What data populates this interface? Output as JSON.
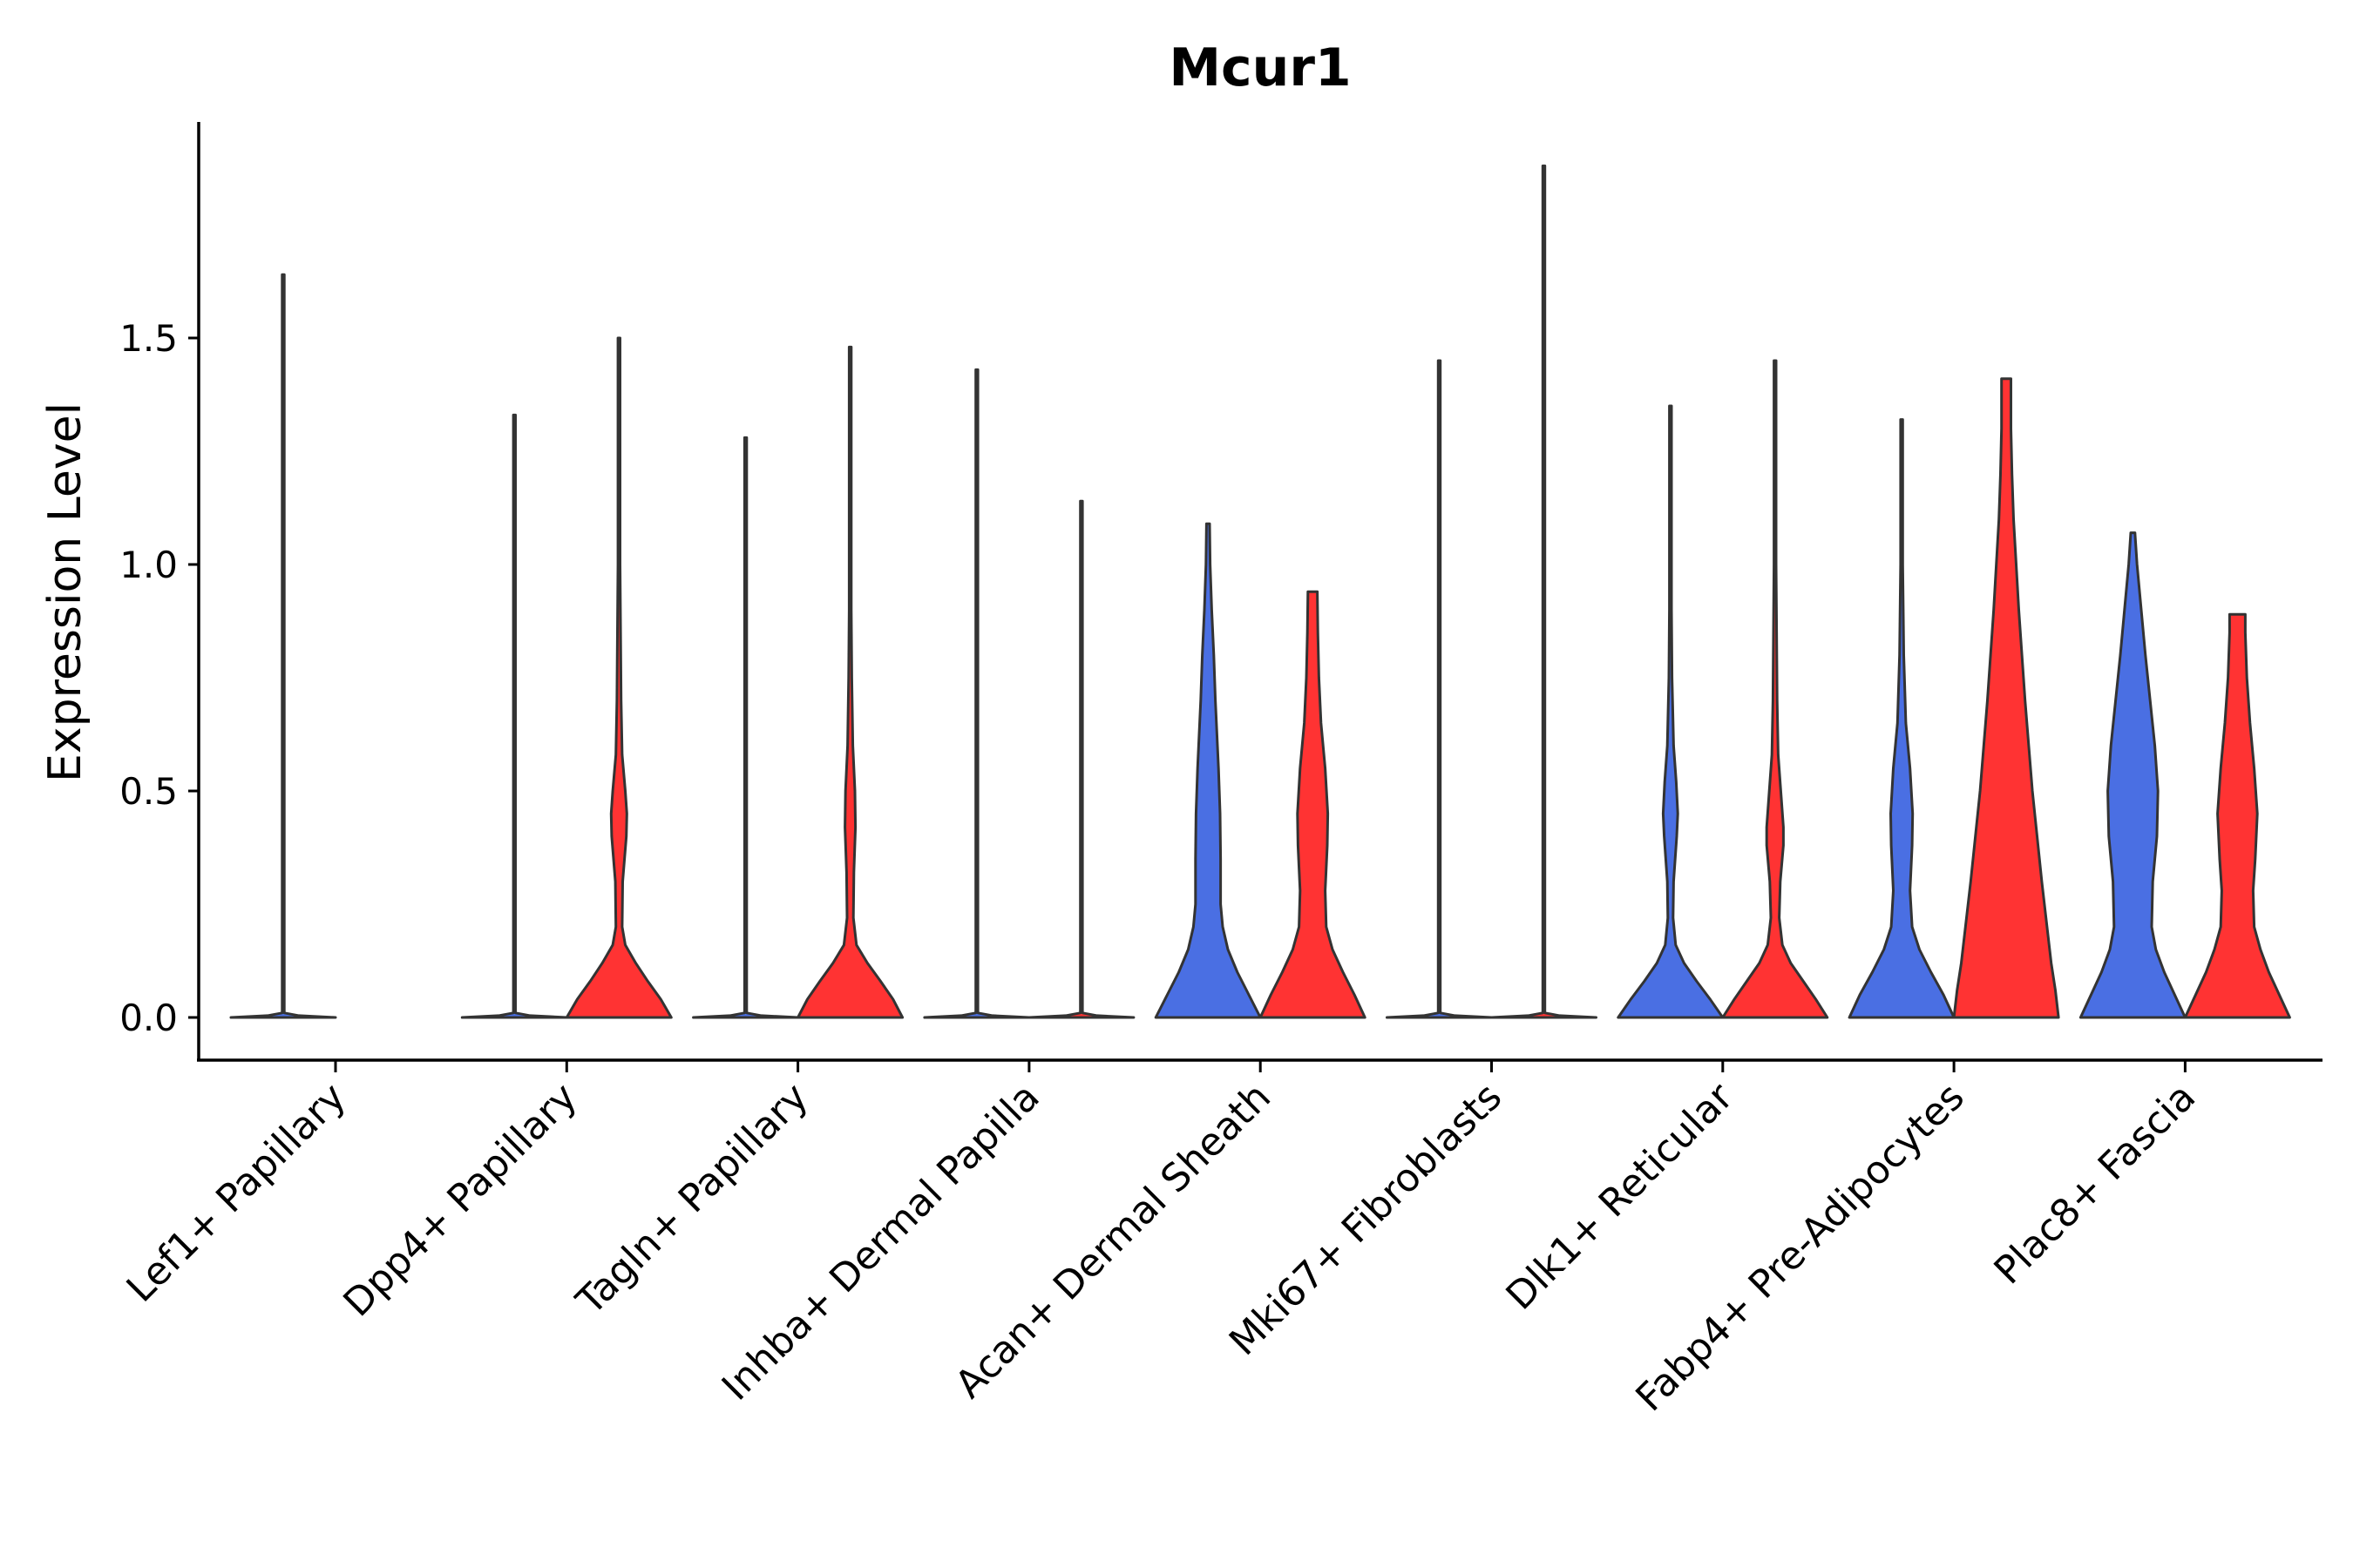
{
  "chart_data": {
    "type": "violin",
    "title": "Mcur1",
    "xlabel": "",
    "ylabel": "Expression Level",
    "ylim": [
      -0.1,
      1.97
    ],
    "yticks": [
      0.0,
      0.5,
      1.0,
      1.5
    ],
    "ytick_labels": [
      "0.0",
      "0.5",
      "1.0",
      "1.5"
    ],
    "colors": {
      "group_a": "#4A6FE3",
      "group_b": "#FF3333",
      "outline": "#333333"
    },
    "categories": [
      "Lef1+ Papillary",
      "Dpp4+ Papillary",
      "Tagln+ Papillary",
      "Inhba+ Dermal Papilla",
      "Acan+ Dermal Sheath",
      "Mki67+ Fibroblasts",
      "Dlk1+ Reticular",
      "Fabp4+ Pre-Adipocytes",
      "Plac8+ Fascia"
    ],
    "violins": [
      {
        "category": 0,
        "group": "a",
        "max": 1.64,
        "profile": [
          [
            0,
            1.0
          ],
          [
            0.004,
            0.3
          ],
          [
            0.01,
            0.02
          ],
          [
            1.64,
            0.005
          ]
        ]
      },
      {
        "category": 1,
        "group": "a",
        "max": 1.33,
        "profile": [
          [
            0,
            1.0
          ],
          [
            0.004,
            0.3
          ],
          [
            0.01,
            0.02
          ],
          [
            1.33,
            0.005
          ]
        ]
      },
      {
        "category": 1,
        "group": "b",
        "max": 1.5,
        "profile": [
          [
            0,
            1.0
          ],
          [
            0.04,
            0.8
          ],
          [
            0.08,
            0.55
          ],
          [
            0.12,
            0.32
          ],
          [
            0.16,
            0.12
          ],
          [
            0.2,
            0.06
          ],
          [
            0.3,
            0.07
          ],
          [
            0.4,
            0.14
          ],
          [
            0.45,
            0.15
          ],
          [
            0.5,
            0.12
          ],
          [
            0.58,
            0.06
          ],
          [
            0.7,
            0.04
          ],
          [
            0.85,
            0.03
          ],
          [
            1.0,
            0.01
          ],
          [
            1.5,
            0.005
          ]
        ]
      },
      {
        "category": 2,
        "group": "a",
        "max": 1.28,
        "profile": [
          [
            0,
            1.0
          ],
          [
            0.004,
            0.3
          ],
          [
            0.01,
            0.02
          ],
          [
            1.28,
            0.005
          ]
        ]
      },
      {
        "category": 2,
        "group": "b",
        "max": 1.48,
        "profile": [
          [
            0,
            1.0
          ],
          [
            0.04,
            0.82
          ],
          [
            0.08,
            0.58
          ],
          [
            0.12,
            0.33
          ],
          [
            0.16,
            0.12
          ],
          [
            0.22,
            0.06
          ],
          [
            0.32,
            0.07
          ],
          [
            0.42,
            0.1
          ],
          [
            0.5,
            0.09
          ],
          [
            0.6,
            0.05
          ],
          [
            0.75,
            0.03
          ],
          [
            0.9,
            0.02
          ],
          [
            1.2,
            0.01
          ],
          [
            1.48,
            0.005
          ]
        ]
      },
      {
        "category": 3,
        "group": "a",
        "max": 1.43,
        "profile": [
          [
            0,
            1.0
          ],
          [
            0.004,
            0.3
          ],
          [
            0.01,
            0.02
          ],
          [
            1.43,
            0.005
          ]
        ]
      },
      {
        "category": 3,
        "group": "b",
        "max": 1.14,
        "profile": [
          [
            0,
            1.0
          ],
          [
            0.004,
            0.3
          ],
          [
            0.01,
            0.02
          ],
          [
            1.14,
            0.005
          ]
        ]
      },
      {
        "category": 4,
        "group": "a",
        "max": 1.09,
        "profile": [
          [
            0,
            1.0
          ],
          [
            0.05,
            0.78
          ],
          [
            0.1,
            0.56
          ],
          [
            0.15,
            0.38
          ],
          [
            0.2,
            0.28
          ],
          [
            0.25,
            0.24
          ],
          [
            0.35,
            0.24
          ],
          [
            0.45,
            0.23
          ],
          [
            0.55,
            0.2
          ],
          [
            0.7,
            0.14
          ],
          [
            0.8,
            0.11
          ],
          [
            0.9,
            0.07
          ],
          [
            1.0,
            0.04
          ],
          [
            1.09,
            0.03
          ]
        ]
      },
      {
        "category": 4,
        "group": "b",
        "max": 0.94,
        "profile": [
          [
            0,
            1.0
          ],
          [
            0.05,
            0.8
          ],
          [
            0.1,
            0.58
          ],
          [
            0.15,
            0.38
          ],
          [
            0.2,
            0.26
          ],
          [
            0.28,
            0.24
          ],
          [
            0.38,
            0.28
          ],
          [
            0.45,
            0.29
          ],
          [
            0.55,
            0.24
          ],
          [
            0.65,
            0.16
          ],
          [
            0.75,
            0.12
          ],
          [
            0.85,
            0.1
          ],
          [
            0.94,
            0.09
          ]
        ]
      },
      {
        "category": 5,
        "group": "a",
        "max": 1.45,
        "profile": [
          [
            0,
            1.0
          ],
          [
            0.004,
            0.3
          ],
          [
            0.01,
            0.02
          ],
          [
            1.45,
            0.005
          ]
        ]
      },
      {
        "category": 5,
        "group": "b",
        "max": 1.88,
        "profile": [
          [
            0,
            1.0
          ],
          [
            0.004,
            0.3
          ],
          [
            0.01,
            0.02
          ],
          [
            1.88,
            0.005
          ]
        ]
      },
      {
        "category": 6,
        "group": "a",
        "max": 1.35,
        "profile": [
          [
            0,
            1.0
          ],
          [
            0.04,
            0.76
          ],
          [
            0.08,
            0.5
          ],
          [
            0.12,
            0.26
          ],
          [
            0.16,
            0.1
          ],
          [
            0.22,
            0.05
          ],
          [
            0.3,
            0.06
          ],
          [
            0.4,
            0.12
          ],
          [
            0.45,
            0.14
          ],
          [
            0.52,
            0.11
          ],
          [
            0.6,
            0.06
          ],
          [
            0.75,
            0.03
          ],
          [
            0.9,
            0.02
          ],
          [
            1.1,
            0.01
          ],
          [
            1.35,
            0.005
          ]
        ]
      },
      {
        "category": 6,
        "group": "b",
        "max": 1.45,
        "profile": [
          [
            0,
            1.0
          ],
          [
            0.04,
            0.78
          ],
          [
            0.08,
            0.54
          ],
          [
            0.12,
            0.3
          ],
          [
            0.16,
            0.14
          ],
          [
            0.22,
            0.08
          ],
          [
            0.3,
            0.1
          ],
          [
            0.38,
            0.16
          ],
          [
            0.42,
            0.16
          ],
          [
            0.5,
            0.11
          ],
          [
            0.58,
            0.06
          ],
          [
            0.7,
            0.04
          ],
          [
            0.85,
            0.03
          ],
          [
            1.0,
            0.02
          ],
          [
            1.2,
            0.01
          ],
          [
            1.45,
            0.005
          ]
        ]
      },
      {
        "category": 7,
        "group": "a",
        "max": 1.32,
        "profile": [
          [
            0,
            1.0
          ],
          [
            0.05,
            0.8
          ],
          [
            0.1,
            0.56
          ],
          [
            0.15,
            0.34
          ],
          [
            0.2,
            0.2
          ],
          [
            0.28,
            0.16
          ],
          [
            0.38,
            0.2
          ],
          [
            0.45,
            0.21
          ],
          [
            0.55,
            0.16
          ],
          [
            0.65,
            0.08
          ],
          [
            0.8,
            0.04
          ],
          [
            1.0,
            0.02
          ],
          [
            1.32,
            0.005
          ]
        ]
      },
      {
        "category": 7,
        "group": "b",
        "max": 1.41,
        "profile": [
          [
            0,
            1.0
          ],
          [
            0.06,
            0.94
          ],
          [
            0.12,
            0.86
          ],
          [
            0.2,
            0.78
          ],
          [
            0.3,
            0.68
          ],
          [
            0.4,
            0.59
          ],
          [
            0.5,
            0.5
          ],
          [
            0.6,
            0.43
          ],
          [
            0.7,
            0.36
          ],
          [
            0.8,
            0.3
          ],
          [
            0.9,
            0.24
          ],
          [
            1.0,
            0.19
          ],
          [
            1.1,
            0.14
          ],
          [
            1.2,
            0.11
          ],
          [
            1.3,
            0.09
          ],
          [
            1.41,
            0.09
          ]
        ]
      },
      {
        "category": 8,
        "group": "a",
        "max": 1.07,
        "profile": [
          [
            0,
            1.0
          ],
          [
            0.05,
            0.8
          ],
          [
            0.1,
            0.6
          ],
          [
            0.15,
            0.44
          ],
          [
            0.2,
            0.36
          ],
          [
            0.3,
            0.38
          ],
          [
            0.4,
            0.46
          ],
          [
            0.5,
            0.48
          ],
          [
            0.6,
            0.42
          ],
          [
            0.7,
            0.33
          ],
          [
            0.8,
            0.24
          ],
          [
            0.9,
            0.16
          ],
          [
            1.0,
            0.08
          ],
          [
            1.07,
            0.04
          ]
        ]
      },
      {
        "category": 8,
        "group": "b",
        "max": 0.89,
        "profile": [
          [
            0,
            1.0
          ],
          [
            0.05,
            0.8
          ],
          [
            0.1,
            0.6
          ],
          [
            0.15,
            0.44
          ],
          [
            0.2,
            0.32
          ],
          [
            0.28,
            0.3
          ],
          [
            0.35,
            0.34
          ],
          [
            0.45,
            0.38
          ],
          [
            0.55,
            0.32
          ],
          [
            0.65,
            0.24
          ],
          [
            0.75,
            0.18
          ],
          [
            0.85,
            0.15
          ],
          [
            0.89,
            0.15
          ]
        ]
      }
    ]
  }
}
